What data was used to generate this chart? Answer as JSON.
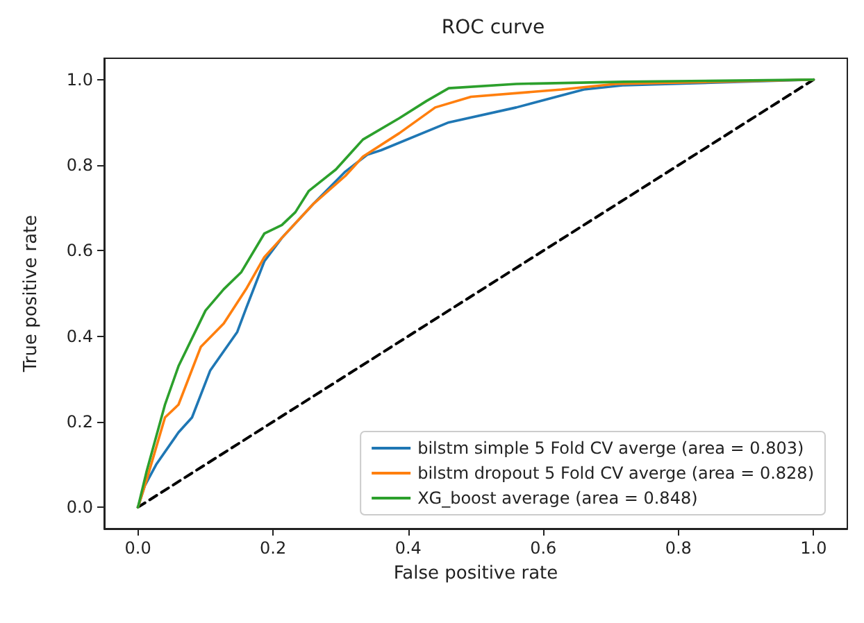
{
  "chart_data": {
    "type": "line",
    "title": "ROC curve",
    "xlabel": "False positive rate",
    "ylabel": "True positive rate",
    "xlim": [
      -0.05,
      1.05
    ],
    "ylim": [
      -0.05,
      1.05
    ],
    "xticks": [
      {
        "value": 0,
        "label": "0.0"
      },
      0.2,
      0.4,
      0.6,
      0.8,
      {
        "value": 1,
        "label": "1.0"
      }
    ],
    "yticks": [
      {
        "value": 0,
        "label": "0.0"
      },
      0.2,
      0.4,
      0.6,
      0.8,
      {
        "value": 1,
        "label": "1.0"
      }
    ],
    "grid": false,
    "legend": "bottom right",
    "marker": "none",
    "series": [
      {
        "name": "bilstm simple 5 Fold CV averge (area = 0.803)",
        "color": "#1f77b4",
        "x": [
          0,
          0.01,
          0.027,
          0.06,
          0.08,
          0.107,
          0.147,
          0.16,
          0.187,
          0.213,
          0.26,
          0.307,
          0.34,
          0.36,
          0.46,
          0.56,
          0.66,
          0.72,
          1.0
        ],
        "values": [
          0,
          0.05,
          0.1,
          0.175,
          0.21,
          0.32,
          0.41,
          0.465,
          0.575,
          0.63,
          0.71,
          0.785,
          0.825,
          0.835,
          0.9,
          0.935,
          0.977,
          0.987,
          1.0
        ]
      },
      {
        "name": "bilstm dropout 5 Fold CV averge (area = 0.828)",
        "color": "#ff7f0e",
        "x": [
          0,
          0.013,
          0.04,
          0.06,
          0.093,
          0.127,
          0.16,
          0.187,
          0.213,
          0.26,
          0.307,
          0.333,
          0.387,
          0.44,
          0.493,
          0.627,
          0.707,
          1.0
        ],
        "values": [
          0,
          0.065,
          0.21,
          0.24,
          0.375,
          0.43,
          0.51,
          0.585,
          0.63,
          0.71,
          0.775,
          0.82,
          0.875,
          0.935,
          0.96,
          0.977,
          0.99,
          1.0
        ]
      },
      {
        "name": "XG_boost average (area = 0.848)",
        "color": "#2ca02c",
        "x": [
          0,
          0.013,
          0.04,
          0.06,
          0.1,
          0.127,
          0.153,
          0.187,
          0.213,
          0.233,
          0.253,
          0.293,
          0.333,
          0.387,
          0.427,
          0.46,
          0.56,
          0.72,
          1.0
        ],
        "values": [
          0,
          0.085,
          0.24,
          0.33,
          0.46,
          0.51,
          0.55,
          0.64,
          0.66,
          0.69,
          0.74,
          0.79,
          0.86,
          0.91,
          0.95,
          0.98,
          0.99,
          0.995,
          1.0
        ]
      },
      {
        "color": "#000000",
        "line_style": "dashed",
        "x": [
          0,
          1
        ],
        "values": [
          0,
          1
        ]
      }
    ]
  }
}
